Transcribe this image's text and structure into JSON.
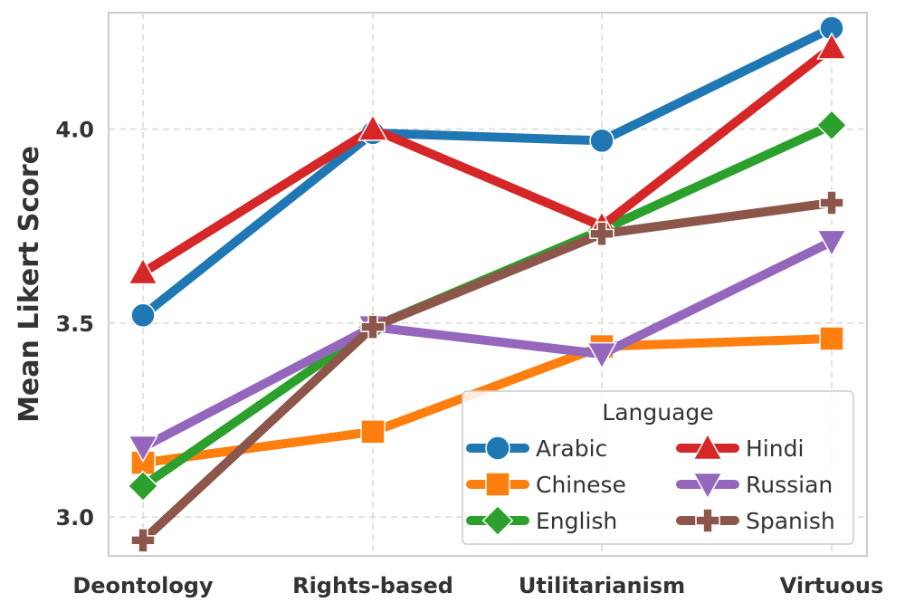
{
  "chart_data": {
    "type": "line",
    "title": "",
    "xlabel": "",
    "ylabel": "Mean Likert Score",
    "categories": [
      "Deontology",
      "Rights-based",
      "Utilitarianism",
      "Virtuous"
    ],
    "ylim": [
      2.9,
      4.3
    ],
    "yticks": [
      3.0,
      3.5,
      4.0
    ],
    "ytick_labels": [
      "3.0",
      "3.5",
      "4.0"
    ],
    "grid": true,
    "legend": {
      "title": "Language",
      "placement": "lower-right",
      "columns": 2
    },
    "series": [
      {
        "name": "Arabic",
        "color": "#1f77b4",
        "marker": "circle",
        "values": [
          3.52,
          3.99,
          3.97,
          4.26
        ]
      },
      {
        "name": "Chinese",
        "color": "#ff7f0e",
        "marker": "square",
        "values": [
          3.14,
          3.22,
          3.44,
          3.46
        ]
      },
      {
        "name": "English",
        "color": "#2ca02c",
        "marker": "diamond",
        "values": [
          3.08,
          3.49,
          3.74,
          4.01
        ]
      },
      {
        "name": "Hindi",
        "color": "#d62728",
        "marker": "triangle-up",
        "values": [
          3.63,
          4.0,
          3.75,
          4.21
        ]
      },
      {
        "name": "Russian",
        "color": "#9467bd",
        "marker": "triangle-down",
        "values": [
          3.18,
          3.49,
          3.42,
          3.71
        ]
      },
      {
        "name": "Spanish",
        "color": "#8c564b",
        "marker": "plus",
        "values": [
          2.94,
          3.49,
          3.73,
          3.81
        ]
      }
    ]
  }
}
